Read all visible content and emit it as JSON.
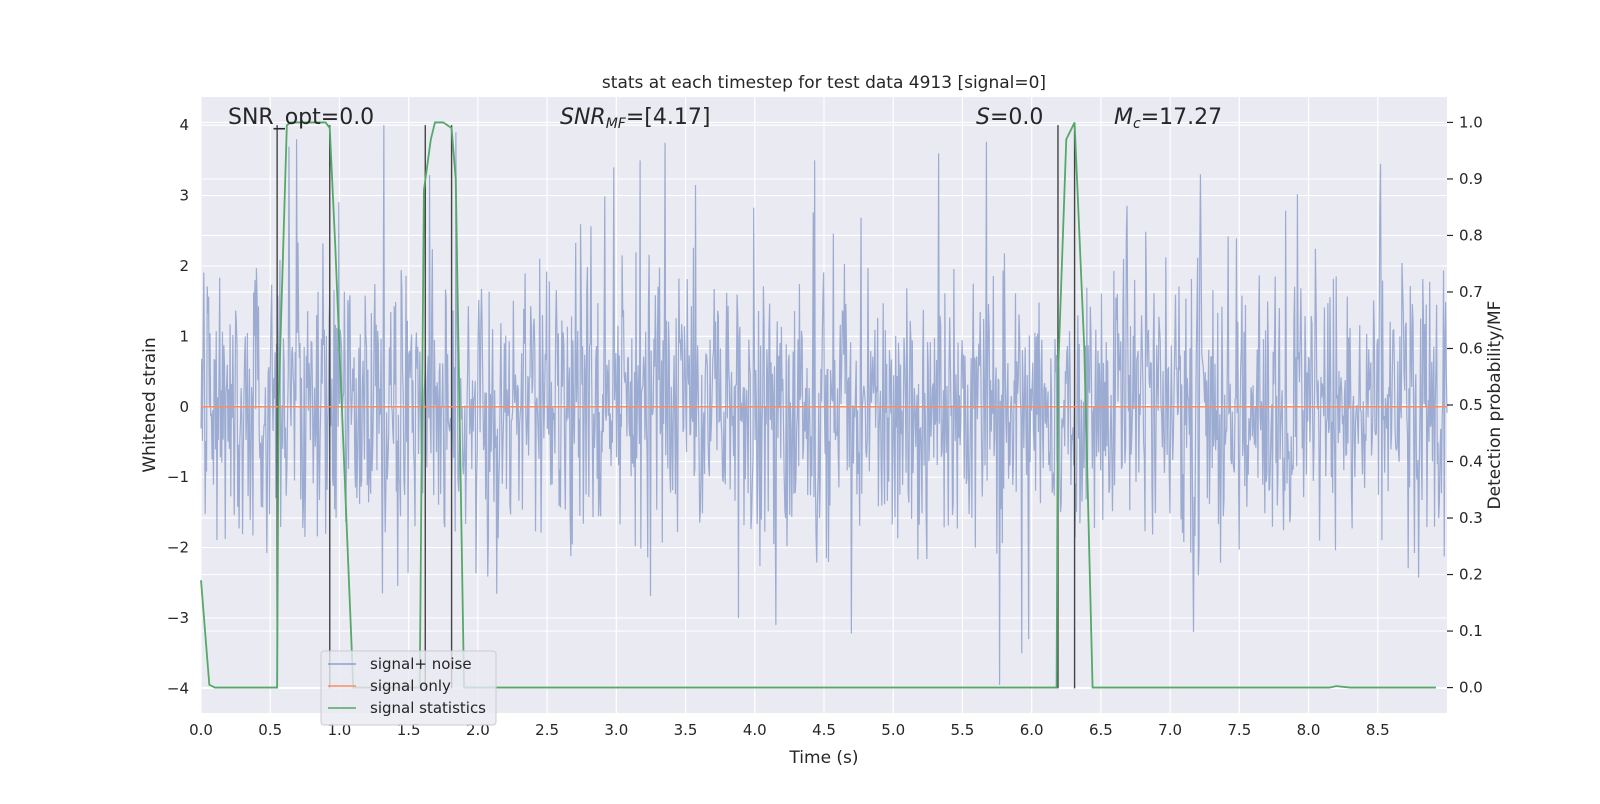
{
  "chart_data": {
    "type": "line",
    "title": "stats at each timestep for test data 4913 [signal=0]",
    "xlabel": "Time (s)",
    "ylabel_left": "Whitened strain",
    "ylabel_right": "Detection probability/MF",
    "xlim": [
      0.0,
      9.0
    ],
    "ylim_left": [
      -4.35,
      4.4
    ],
    "ylim_right": [
      -0.045,
      1.045
    ],
    "x_ticks": [
      0.0,
      0.5,
      1.0,
      1.5,
      2.0,
      2.5,
      3.0,
      3.5,
      4.0,
      4.5,
      5.0,
      5.5,
      6.0,
      6.5,
      7.0,
      7.5,
      8.0,
      8.5
    ],
    "x_tick_labels": [
      "0.0",
      "0.5",
      "1.0",
      "1.5",
      "2.0",
      "2.5",
      "3.0",
      "3.5",
      "4.0",
      "4.5",
      "5.0",
      "5.5",
      "6.0",
      "6.5",
      "7.0",
      "7.5",
      "8.0",
      "8.5"
    ],
    "y_ticks_left": [
      -4,
      -3,
      -2,
      -1,
      0,
      1,
      2,
      3,
      4
    ],
    "y_tick_labels_left": [
      "−4",
      "−3",
      "−2",
      "−1",
      "0",
      "1",
      "2",
      "3",
      "4"
    ],
    "y_ticks_right": [
      0.0,
      0.1,
      0.2,
      0.3,
      0.4,
      0.5,
      0.6,
      0.7,
      0.8,
      0.9,
      1.0
    ],
    "y_tick_labels_right": [
      "0.0",
      "0.1",
      "0.2",
      "0.3",
      "0.4",
      "0.5",
      "0.6",
      "0.7",
      "0.8",
      "0.9",
      "1.0"
    ],
    "grid": true,
    "legend_position": "lower-left",
    "annotations": {
      "snr_opt": {
        "text": "SNR_opt=0.0",
        "x": 0.2
      },
      "snr_mf_prefix": "SNR",
      "snr_mf_sub": "MF",
      "snr_mf_value": "=[4.17]",
      "s_symbol": "S",
      "s_value": "=0.0",
      "mc_symbol": "M",
      "mc_sub": "c",
      "mc_value": "=17.27"
    },
    "vertical_markers": [
      0.55,
      0.93,
      1.62,
      1.81,
      6.19,
      6.31
    ],
    "series": [
      {
        "name": "signal+ noise",
        "axis": "left",
        "color": "#8da0cb",
        "description_of_shape": "dense whitened Gaussian noise, roughly N(0,1)",
        "n_samples": 1800,
        "envelope_min": -3.9,
        "envelope_max": 4.0,
        "peaks": [
          {
            "x": 0.69,
            "y": 3.8
          },
          {
            "x": 1.32,
            "y": 4.0
          },
          {
            "x": 1.84,
            "y": 3.9
          },
          {
            "x": 2.98,
            "y": 3.4
          },
          {
            "x": 3.17,
            "y": 3.5
          },
          {
            "x": 3.35,
            "y": 3.75
          },
          {
            "x": 3.57,
            "y": 3.15
          },
          {
            "x": 4.43,
            "y": 3.5
          },
          {
            "x": 5.33,
            "y": 3.6
          },
          {
            "x": 7.22,
            "y": 3.3
          },
          {
            "x": 8.52,
            "y": 3.45
          },
          {
            "x": 5.77,
            "y": -3.95
          },
          {
            "x": 5.93,
            "y": -3.5
          },
          {
            "x": 5.98,
            "y": -3.3
          },
          {
            "x": 4.15,
            "y": -3.1
          },
          {
            "x": 7.17,
            "y": -3.2
          },
          {
            "x": 3.88,
            "y": -3.0
          }
        ]
      },
      {
        "name": "signal only",
        "axis": "left",
        "color": "#fc8d62",
        "x": [
          0.0,
          9.0
        ],
        "y": [
          0.0,
          0.0
        ]
      },
      {
        "name": "signal statistics",
        "axis": "right",
        "color": "#55a868",
        "x": [
          0.0,
          0.06,
          0.1,
          0.15,
          0.2,
          0.3,
          0.4,
          0.5,
          0.55,
          0.56,
          0.62,
          0.65,
          0.7,
          0.8,
          0.9,
          0.93,
          0.97,
          1.1,
          1.2,
          1.3,
          1.4,
          1.5,
          1.58,
          1.61,
          1.66,
          1.69,
          1.75,
          1.81,
          1.84,
          1.9,
          2.0,
          2.2,
          2.5,
          3.0,
          4.0,
          5.0,
          5.5,
          6.0,
          6.18,
          6.19,
          6.25,
          6.31,
          6.38,
          6.44,
          6.5,
          7.0,
          7.5,
          8.0,
          8.15,
          8.2,
          8.3,
          8.5,
          8.92
        ],
        "y": [
          0.19,
          0.005,
          0.0,
          0.0,
          0.0,
          0.0,
          0.0,
          0.0,
          0.0,
          0.5,
          0.995,
          1.0,
          1.0,
          1.0,
          1.0,
          0.99,
          0.78,
          0.0,
          0.0,
          0.0,
          0.0,
          0.0,
          0.0,
          0.88,
          0.97,
          1.0,
          1.0,
          0.99,
          0.9,
          0.0,
          0.0,
          0.0,
          0.0,
          0.0,
          0.0,
          0.0,
          0.0,
          0.0,
          0.0,
          0.55,
          0.97,
          1.0,
          0.6,
          0.0,
          0.0,
          0.0,
          0.0,
          0.0,
          0.0,
          0.0025,
          0.0,
          0.0,
          0.0
        ]
      }
    ]
  }
}
